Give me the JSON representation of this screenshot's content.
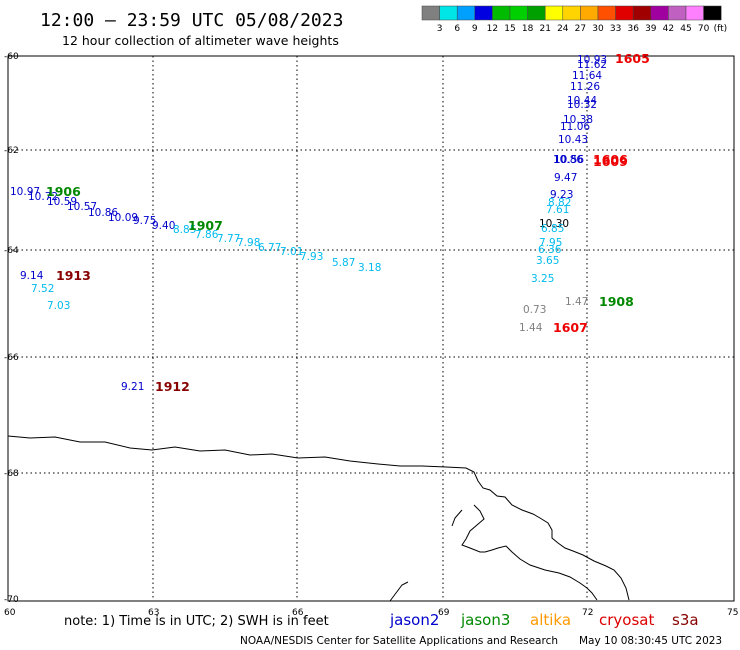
{
  "title": "12:00 — 23:59 UTC 05/08/2023",
  "subtitle": "12 hour collection of altimeter wave heights",
  "colorbar": {
    "colors": [
      "#808080",
      "#00e5e5",
      "#00a0ff",
      "#0000e0",
      "#00bb00",
      "#00d000",
      "#00a000",
      "#ffff00",
      "#ffd400",
      "#ffaa00",
      "#ff5000",
      "#e00000",
      "#a00000",
      "#a000a0",
      "#c060c0",
      "#ff80ff",
      "#000000"
    ],
    "labels": [
      "3",
      "6",
      "9",
      "12",
      "15",
      "18",
      "21",
      "24",
      "27",
      "30",
      "33",
      "36",
      "39",
      "42",
      "45",
      "70"
    ],
    "unit": "(ft)"
  },
  "axes": {
    "lat_labels": [
      "-60",
      "-62",
      "-64",
      "-66",
      "-68",
      "-70"
    ],
    "lon_labels": [
      "60",
      "63",
      "66",
      "69",
      "72",
      "75"
    ]
  },
  "satellite_colors": {
    "jason2": "#0000cc",
    "jason3": "#008800",
    "altika": "#ff9900",
    "cryosat": "#dd0000",
    "s3a": "#880000"
  },
  "observations": [
    {
      "v": "10.93",
      "c": "#0000cc"
    },
    {
      "v": "11.62",
      "c": "#0000cc"
    },
    {
      "v": "11.64",
      "c": "#0000cc"
    },
    {
      "v": "11.26",
      "c": "#0000cc"
    },
    {
      "v": "10.44",
      "c": "#0000cc"
    },
    {
      "v": "10.32",
      "c": "#0000cc"
    },
    {
      "v": "10.38",
      "c": "#0000cc"
    },
    {
      "v": "11.06",
      "c": "#0000cc"
    },
    {
      "v": "10.43",
      "c": "#0000cc"
    },
    {
      "v": "10.86",
      "c": "#0000cc"
    },
    {
      "v": "10.56",
      "c": "#0000cc"
    },
    {
      "v": "9.47",
      "c": "#0000cc"
    },
    {
      "v": "9.23",
      "c": "#0000cc"
    },
    {
      "v": "8.82",
      "c": "#00bbee"
    },
    {
      "v": "7.61",
      "c": "#00bbee"
    },
    {
      "v": "10.30",
      "c": "#000000"
    },
    {
      "v": "6.85",
      "c": "#00bbee"
    },
    {
      "v": "7.95",
      "c": "#00bbee"
    },
    {
      "v": "6.36",
      "c": "#00bbee"
    },
    {
      "v": "3.65",
      "c": "#00bbee"
    },
    {
      "v": "3.25",
      "c": "#00bbee"
    },
    {
      "v": "0.73",
      "c": "#808080"
    },
    {
      "v": "1.47",
      "c": "#808080"
    },
    {
      "v": "1.44",
      "c": "#808080"
    },
    {
      "v": "10.97",
      "c": "#0000cc"
    },
    {
      "v": "10.72",
      "c": "#0000cc"
    },
    {
      "v": "10.59",
      "c": "#0000cc"
    },
    {
      "v": "10.57",
      "c": "#0000cc"
    },
    {
      "v": "10.86",
      "c": "#0000cc"
    },
    {
      "v": "10.09",
      "c": "#0000cc"
    },
    {
      "v": "9.75",
      "c": "#0000cc"
    },
    {
      "v": "9.40",
      "c": "#0000cc"
    },
    {
      "v": "8.85",
      "c": "#00bbee"
    },
    {
      "v": "7.86",
      "c": "#00bbee"
    },
    {
      "v": "7.77",
      "c": "#00bbee"
    },
    {
      "v": "7.98",
      "c": "#00bbee"
    },
    {
      "v": "6.77",
      "c": "#00bbee"
    },
    {
      "v": "7.01",
      "c": "#00bbee"
    },
    {
      "v": "7.93",
      "c": "#00bbee"
    },
    {
      "v": "5.87",
      "c": "#00bbee"
    },
    {
      "v": "3.18",
      "c": "#00bbee"
    },
    {
      "v": "9.14",
      "c": "#0000cc"
    },
    {
      "v": "7.52",
      "c": "#00bbee"
    },
    {
      "v": "7.03",
      "c": "#00bbee"
    },
    {
      "v": "9.21",
      "c": "#0000cc"
    }
  ],
  "pass_labels": [
    {
      "t": "1605",
      "c": "#ee0000"
    },
    {
      "t": "1606",
      "c": "#ee0000"
    },
    {
      "t": "1609",
      "c": "#ee0000"
    },
    {
      "t": "1906",
      "c": "#008800"
    },
    {
      "t": "1907",
      "c": "#008800"
    },
    {
      "t": "1913",
      "c": "#880000"
    },
    {
      "t": "1908",
      "c": "#008800"
    },
    {
      "t": "1607",
      "c": "#ee0000"
    },
    {
      "t": "1912",
      "c": "#880000"
    }
  ],
  "note": "note:  1) Time is in UTC;  2) SWH is in feet",
  "legend": [
    {
      "name": "jason2",
      "color": "#0000cc"
    },
    {
      "name": "jason3",
      "color": "#008800"
    },
    {
      "name": "altika",
      "color": "#ff9900"
    },
    {
      "name": "cryosat",
      "color": "#dd0000"
    },
    {
      "name": "s3a",
      "color": "#880000"
    }
  ],
  "credit": "NOAA/NESDIS Center for Satellite Applications and Research",
  "timestamp": "May 10 08:30:45 UTC 2023"
}
